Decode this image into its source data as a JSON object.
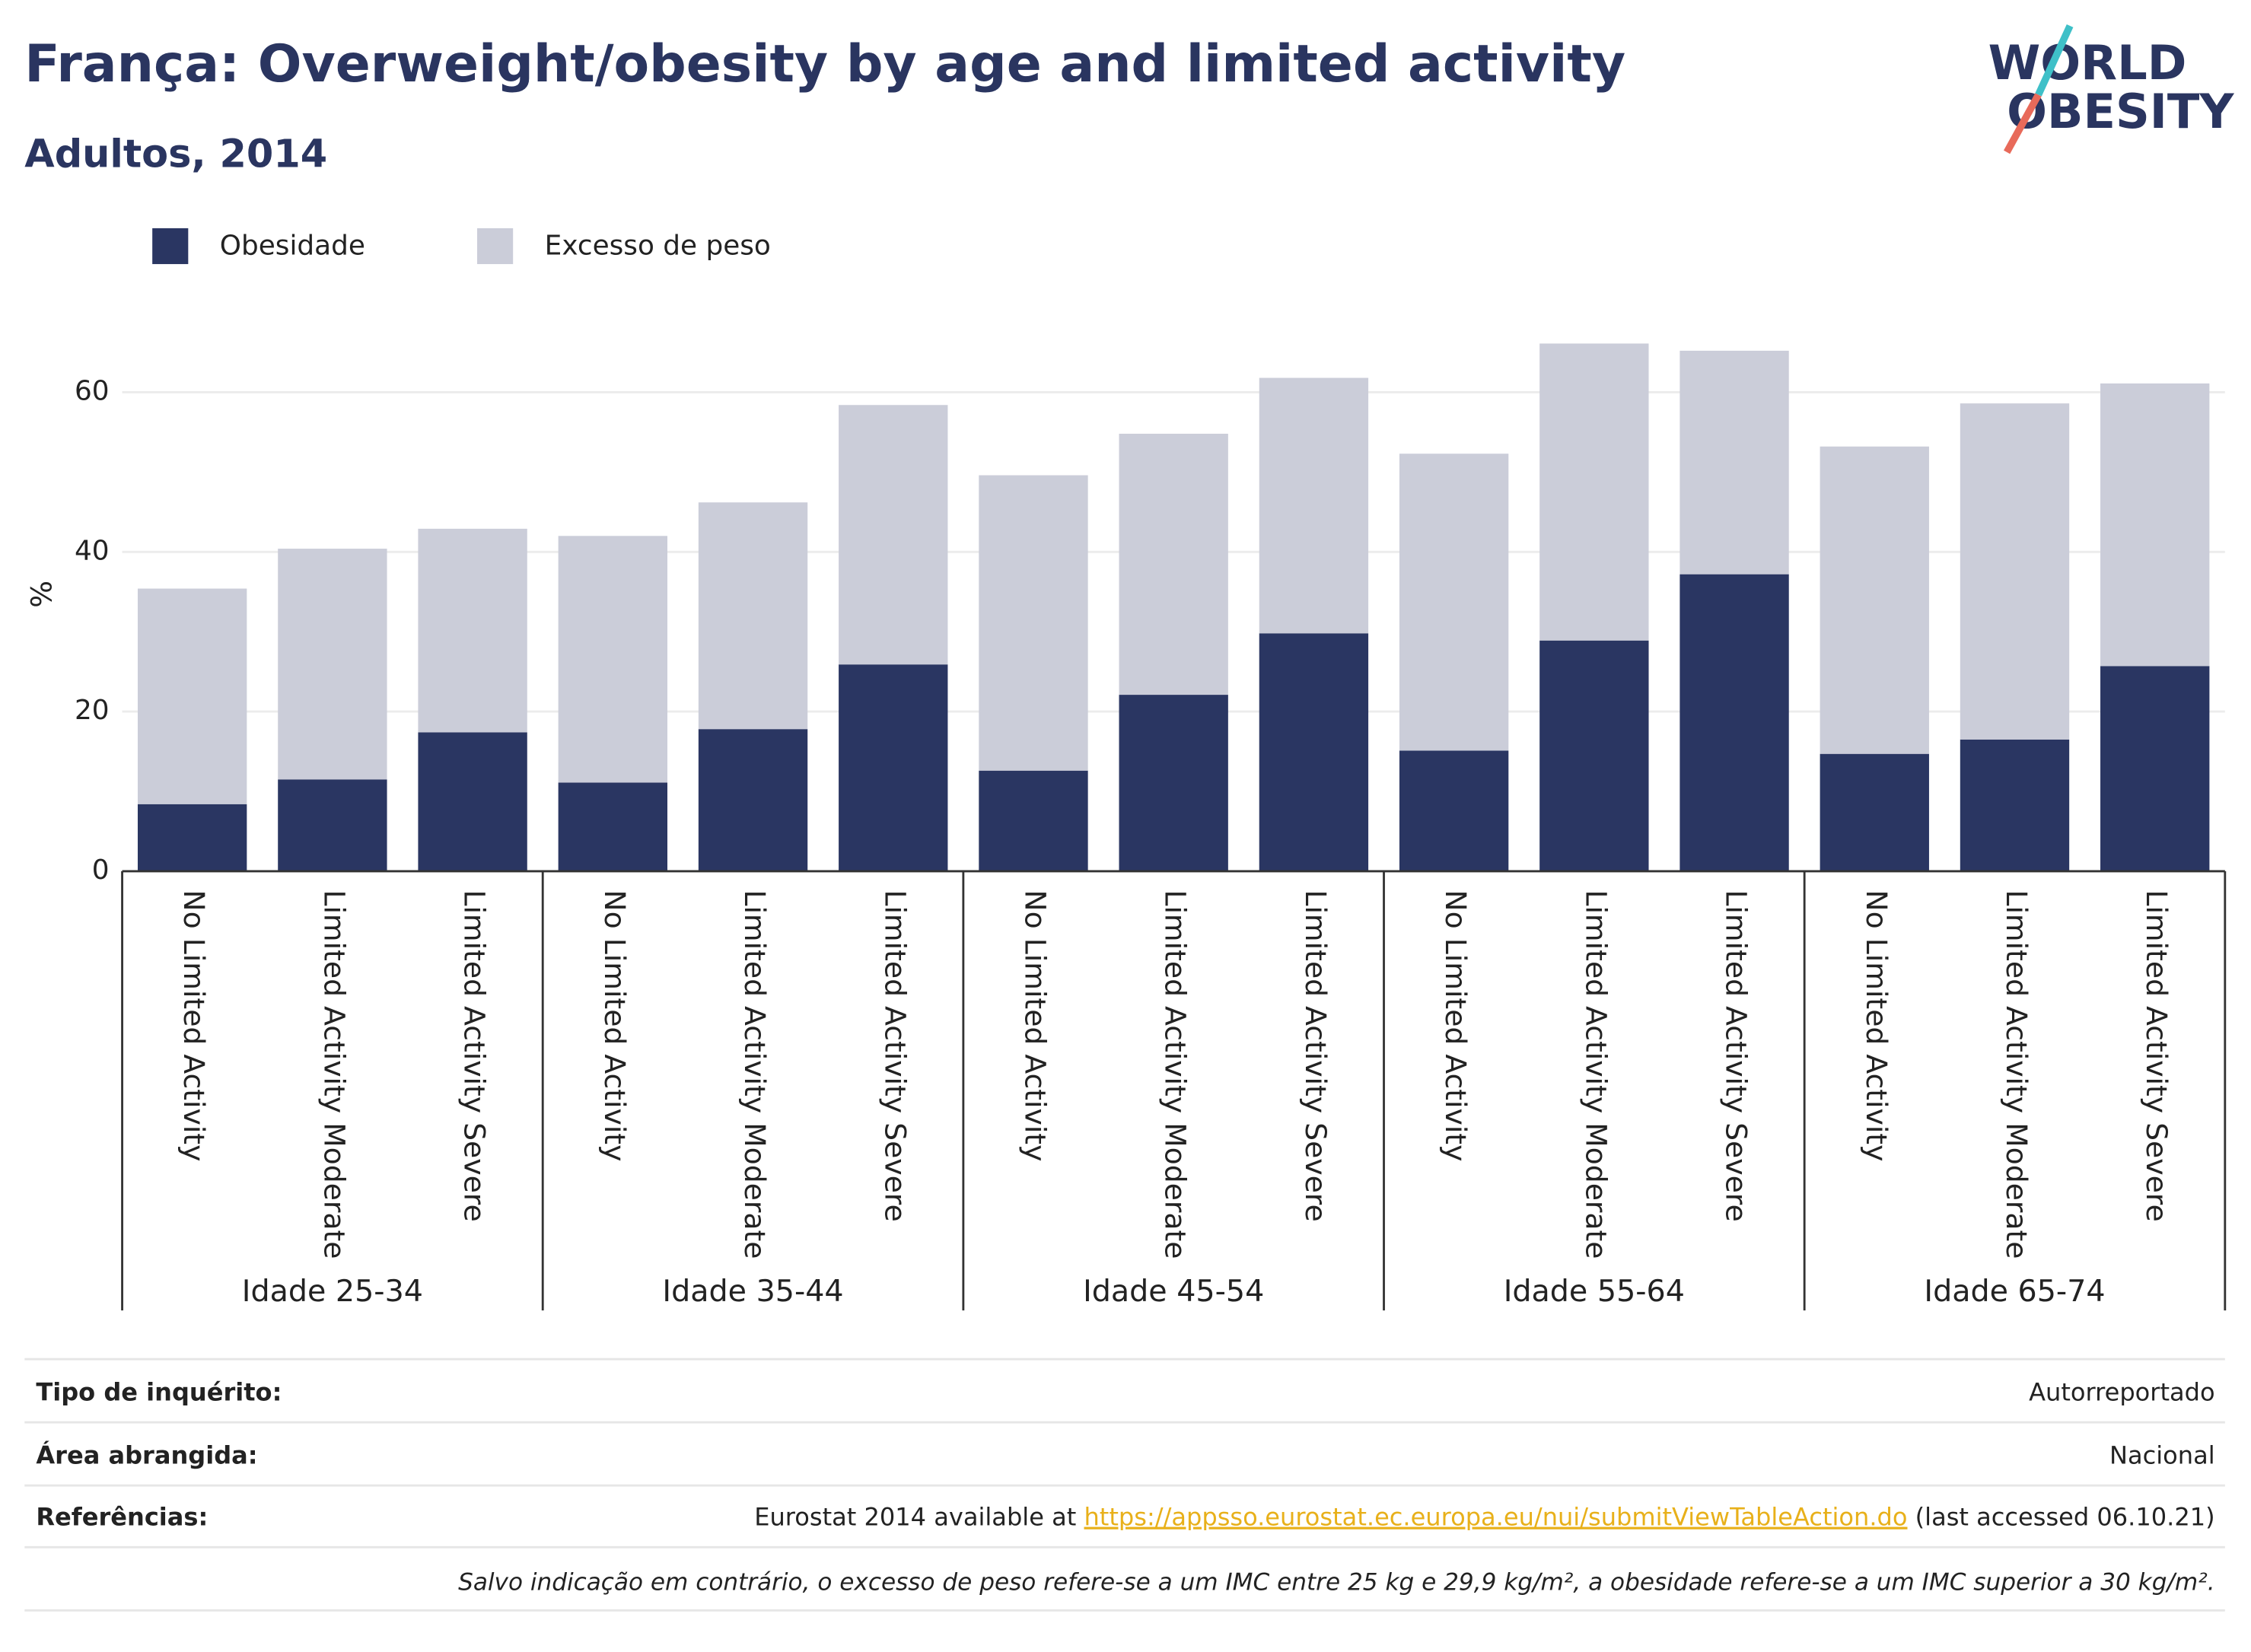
{
  "chart_data": {
    "type": "stacked_bar",
    "title": "França: Overweight/obesity by age and limited activity",
    "subtitle": "Adultos, 2014",
    "y_label": "%",
    "categories": [
      "No Limited Activity",
      "Limited Activity Moderate",
      "Limited Activity Severe",
      "No Limited Activity",
      "Limited Activity Moderate",
      "Limited Activity Severe",
      "No Limited Activity",
      "Limited Activity Moderate",
      "Limited Activity Severe",
      "No Limited Activity",
      "Limited Activity Moderate",
      "Limited Activity Severe",
      "No Limited Activity",
      "Limited Activity Moderate",
      "Limited Activity Severe"
    ],
    "groups": [
      "Idade 25-34",
      "Idade 35-44",
      "Idade 45-54",
      "Idade 55-64",
      "Idade 65-74"
    ],
    "series": [
      {
        "name": "Obesidade",
        "color": "#2a3662",
        "values": [
          8.4,
          11.5,
          17.4,
          11.1,
          17.8,
          25.9,
          12.6,
          22.1,
          29.8,
          15.1,
          28.9,
          37.2,
          14.7,
          16.5,
          25.7
        ]
      },
      {
        "name": "Excesso de peso",
        "color": "#cbcdd9",
        "values": [
          27.0,
          28.9,
          25.5,
          30.9,
          28.4,
          32.5,
          37.0,
          32.7,
          32.0,
          37.2,
          37.2,
          28.0,
          38.5,
          42.1,
          35.4
        ]
      }
    ],
    "ylim": [
      0,
      68.5
    ],
    "yticks": [
      0,
      20,
      40,
      60
    ],
    "grid": true,
    "legend": "top-left"
  },
  "logo": {
    "line1": "WORLD",
    "line2": "OBESITY"
  },
  "footer": {
    "rows": [
      {
        "label": "Tipo de inquérito:",
        "value": "Autorreportado"
      },
      {
        "label": "Área abrangida:",
        "value": "Nacional"
      },
      {
        "label": "Referências:",
        "value": "Eurostat 2014 available at ",
        "link": "https://appsso.eurostat.ec.europa.eu/nui/submitViewTableAction.do",
        "suffix": " (last accessed 06.10.21)"
      }
    ],
    "note": "Salvo indicação em contrário, o excesso de peso refere-se a um IMC entre 25 kg e 29,9 kg/m², a obesidade refere-se a um IMC superior a 30 kg/m²."
  }
}
